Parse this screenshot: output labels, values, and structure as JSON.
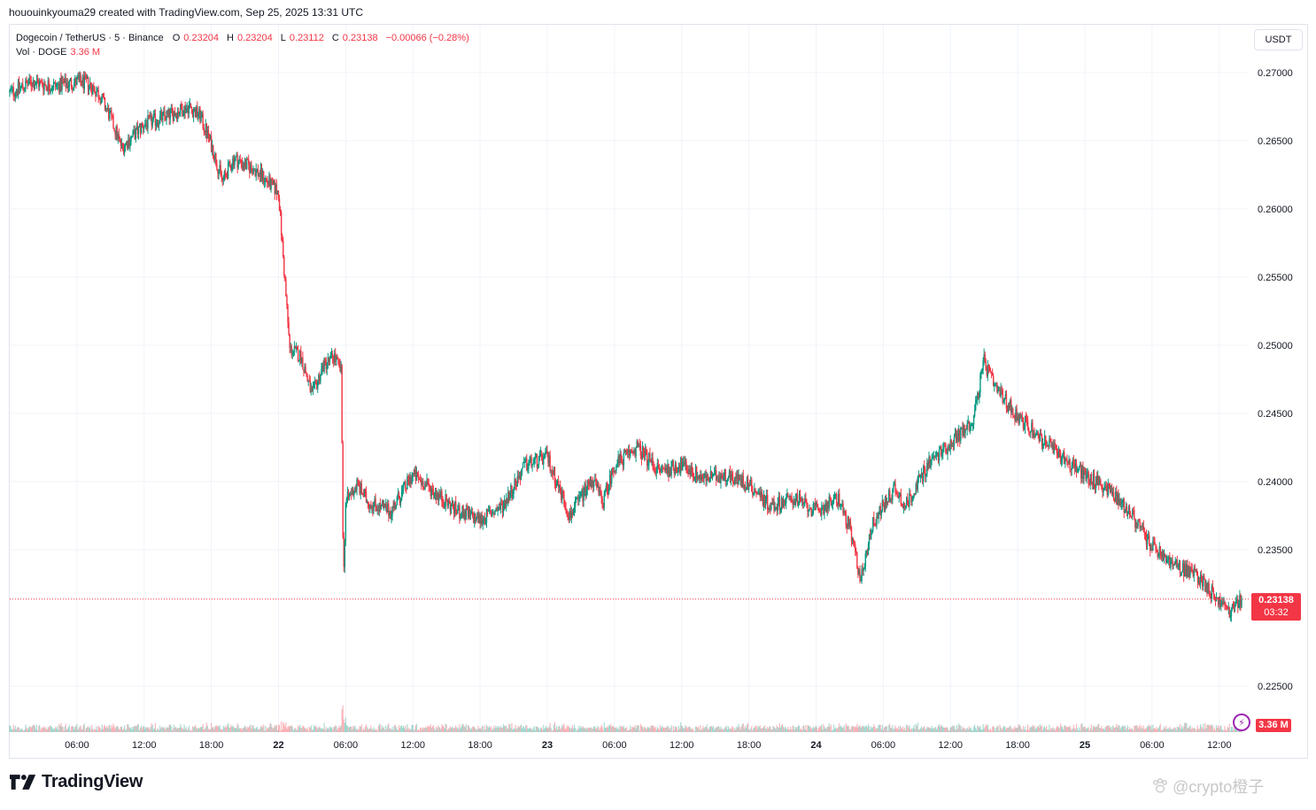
{
  "header": {
    "attribution": "hououinkyouma29 created with TradingView.com, Sep 25, 2025 13:31 UTC"
  },
  "legend": {
    "symbol": "Dogecoin / TetherUS · 5 · Binance",
    "o_label": "O",
    "o_value": "0.23204",
    "h_label": "H",
    "h_value": "0.23204",
    "l_label": "L",
    "l_value": "0.23112",
    "c_label": "C",
    "c_value": "0.23138",
    "change": "−0.00066 (−0.28%)",
    "vol_label": "Vol · DOGE",
    "vol_value": "3.36 M"
  },
  "currency_badge": "USDT",
  "last_price": {
    "value": "0.23138",
    "timer": "03:32"
  },
  "volume_label": "3.36 M",
  "brand": {
    "name": "TradingView"
  },
  "watermark": {
    "text": "@crypto橙子"
  },
  "colors": {
    "up": "#089981",
    "down": "#f23645",
    "grid": "#f0f3fa",
    "axis_text": "#131722"
  },
  "chart_data": {
    "type": "candlestick",
    "symbol": "DOGE/USDT",
    "interval": "5",
    "y_axis_ticks": [
      "0.27000",
      "0.26500",
      "0.26000",
      "0.25500",
      "0.25000",
      "0.24500",
      "0.24000",
      "0.23500",
      "0.22500"
    ],
    "y_axis_tick_values": [
      0.27,
      0.265,
      0.26,
      0.255,
      0.25,
      0.245,
      0.24,
      0.235,
      0.225
    ],
    "ylim": [
      0.2215,
      0.2735
    ],
    "x_axis_ticks": [
      "06:00",
      "12:00",
      "18:00",
      "22",
      "06:00",
      "12:00",
      "18:00",
      "23",
      "06:00",
      "12:00",
      "18:00",
      "24",
      "06:00",
      "12:00",
      "18:00",
      "25",
      "06:00",
      "12:00"
    ],
    "x_tick_hours": [
      6,
      12,
      18,
      24,
      30,
      36,
      42,
      48,
      54,
      60,
      66,
      72,
      78,
      84,
      90,
      96,
      102,
      108
    ],
    "x_range_hours": [
      0,
      110
    ],
    "price_path": {
      "hours": [
        0,
        2,
        4,
        6,
        7,
        8,
        9,
        10,
        12,
        14,
        16,
        17,
        18,
        19,
        20,
        22,
        23,
        24,
        24.5,
        25,
        26,
        27,
        28,
        29,
        29.6,
        29.8,
        30,
        31,
        32,
        34,
        36,
        38,
        40,
        42,
        44,
        46,
        48,
        50,
        52,
        53,
        54,
        56,
        58,
        60,
        62,
        64,
        66,
        68,
        70,
        72,
        74,
        75,
        76,
        77,
        78,
        79,
        80,
        82,
        84,
        86,
        87,
        88,
        90,
        92,
        94,
        96,
        98,
        100,
        102,
        104,
        106,
        107,
        108,
        109,
        110
      ],
      "close": [
        0.2685,
        0.2693,
        0.269,
        0.2693,
        0.2692,
        0.2684,
        0.2667,
        0.2645,
        0.2662,
        0.2668,
        0.2675,
        0.2668,
        0.2647,
        0.262,
        0.2637,
        0.2628,
        0.262,
        0.2612,
        0.2555,
        0.2497,
        0.2492,
        0.2463,
        0.2485,
        0.2492,
        0.248,
        0.2325,
        0.2385,
        0.2398,
        0.2385,
        0.2378,
        0.2405,
        0.2392,
        0.2378,
        0.2372,
        0.2382,
        0.2412,
        0.2418,
        0.2375,
        0.2402,
        0.2385,
        0.2412,
        0.2425,
        0.2408,
        0.2412,
        0.2402,
        0.2405,
        0.2398,
        0.2382,
        0.2388,
        0.2378,
        0.2388,
        0.2365,
        0.2328,
        0.2368,
        0.2382,
        0.2395,
        0.2382,
        0.2413,
        0.2428,
        0.2445,
        0.2488,
        0.2468,
        0.2448,
        0.2432,
        0.2418,
        0.2405,
        0.2395,
        0.2378,
        0.2352,
        0.2338,
        0.2332,
        0.2322,
        0.2312,
        0.2305,
        0.2314
      ]
    },
    "last_close": 0.23138
  }
}
